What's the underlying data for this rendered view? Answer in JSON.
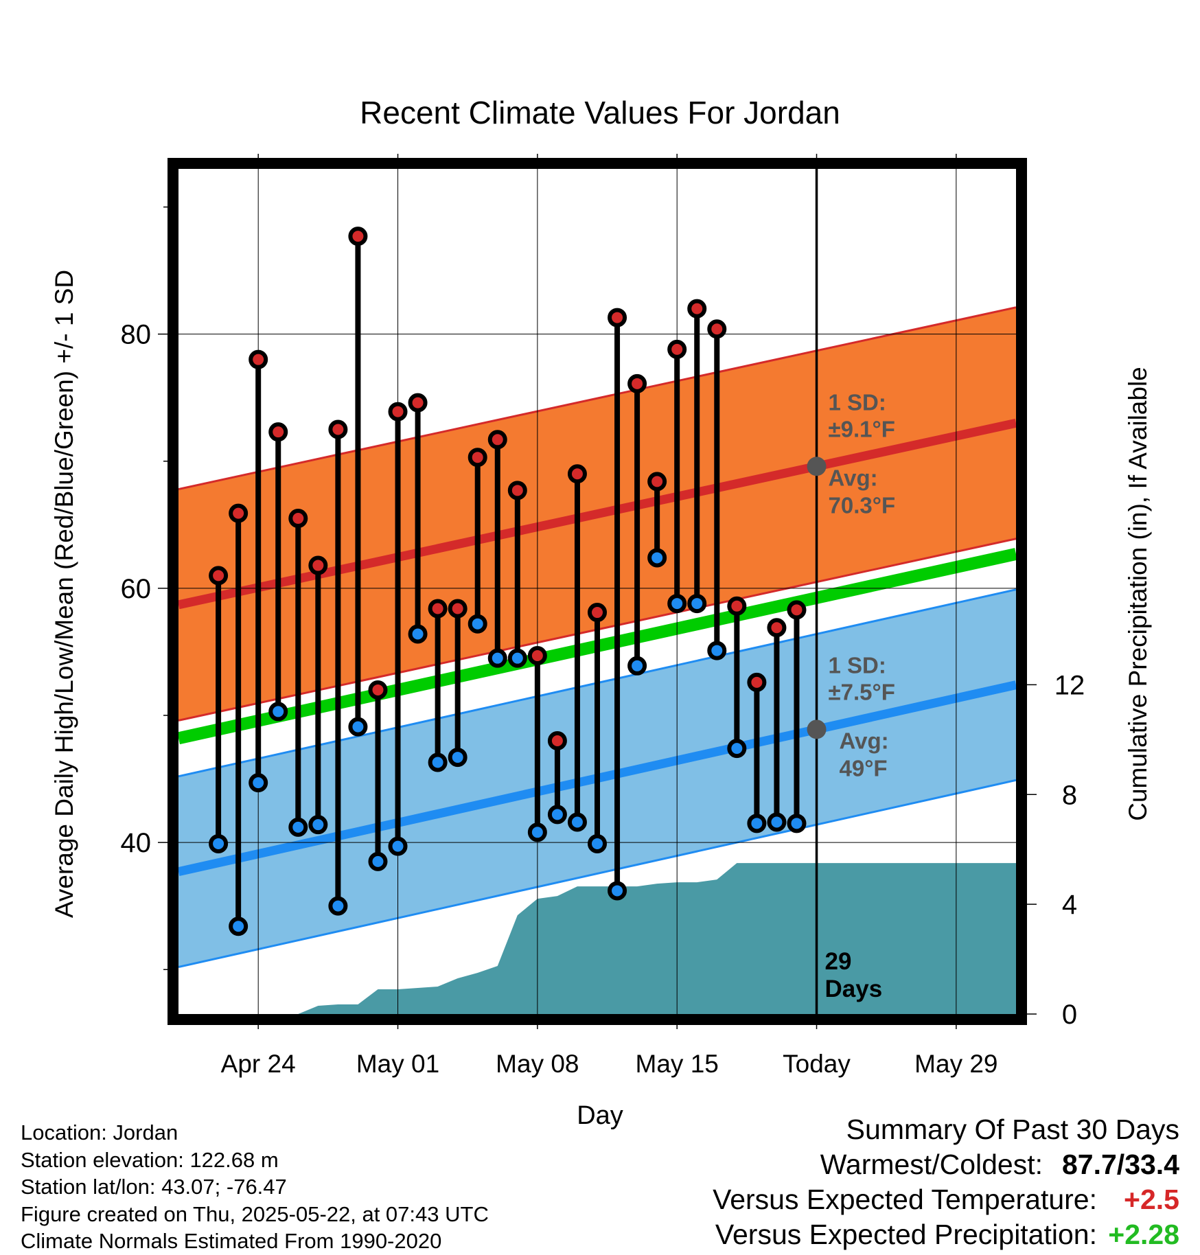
{
  "chart_data": {
    "type": "line",
    "title": "Recent Climate Values For Jordan",
    "xlabel": "Day",
    "ylabel": "Average Daily High/Low/Mean (Red/Blue/Green) +/- 1 SD",
    "y2label": "Cumulative Precipitation (in), If Available",
    "x_tick_labels": [
      "Apr 24",
      "May 01",
      "May 08",
      "May 15",
      "Today",
      "May 29"
    ],
    "x_tick_dates": [
      "2025-04-24",
      "2025-05-01",
      "2025-05-08",
      "2025-05-15",
      "2025-05-22",
      "2025-05-29"
    ],
    "xlim": [
      "2025-04-20",
      "2025-06-01"
    ],
    "ylim": [
      26.5,
      93
    ],
    "y_ticks": [
      40,
      60,
      80
    ],
    "y2lim": [
      0,
      30.8
    ],
    "y2_ticks": [
      0,
      4,
      8,
      12
    ],
    "grid": true,
    "today": "2025-05-22",
    "today_label": "29 Days",
    "observations": {
      "dates": [
        "2025-04-22",
        "2025-04-23",
        "2025-04-24",
        "2025-04-25",
        "2025-04-26",
        "2025-04-27",
        "2025-04-28",
        "2025-04-29",
        "2025-04-30",
        "2025-05-01",
        "2025-05-02",
        "2025-05-03",
        "2025-05-04",
        "2025-05-05",
        "2025-05-06",
        "2025-05-07",
        "2025-05-08",
        "2025-05-09",
        "2025-05-10",
        "2025-05-11",
        "2025-05-12",
        "2025-05-13",
        "2025-05-14",
        "2025-05-15",
        "2025-05-16",
        "2025-05-17",
        "2025-05-18",
        "2025-05-19",
        "2025-05-20",
        "2025-05-21"
      ],
      "high": [
        61.0,
        65.9,
        78.0,
        72.3,
        65.5,
        61.8,
        72.5,
        87.7,
        52.0,
        73.9,
        74.6,
        58.4,
        58.4,
        70.3,
        71.7,
        67.7,
        54.7,
        48.0,
        69.0,
        58.1,
        81.3,
        76.1,
        68.4,
        78.8,
        82.0,
        80.4,
        58.6,
        52.6,
        56.9,
        58.3
      ],
      "low": [
        39.9,
        33.4,
        44.7,
        50.3,
        41.2,
        41.4,
        35.0,
        49.1,
        38.5,
        39.7,
        56.4,
        46.3,
        46.7,
        57.2,
        54.5,
        54.5,
        40.8,
        42.2,
        41.6,
        39.9,
        36.2,
        53.9,
        62.4,
        58.8,
        58.8,
        55.1,
        47.4,
        41.5,
        41.6,
        41.5
      ]
    },
    "normals": {
      "dates": [
        "2025-04-20",
        "2025-06-01"
      ],
      "avg_high": [
        58.7,
        73.0
      ],
      "avg_low": [
        37.7,
        52.4
      ],
      "avg_mean": [
        48.2,
        62.7
      ],
      "high_sd": 9.1,
      "low_sd": 7.5
    },
    "precipitation": {
      "dates": [
        "2025-04-22",
        "2025-04-23",
        "2025-04-24",
        "2025-04-25",
        "2025-04-26",
        "2025-04-27",
        "2025-04-28",
        "2025-04-29",
        "2025-04-30",
        "2025-05-01",
        "2025-05-02",
        "2025-05-03",
        "2025-05-04",
        "2025-05-05",
        "2025-05-06",
        "2025-05-07",
        "2025-05-08",
        "2025-05-09",
        "2025-05-10",
        "2025-05-11",
        "2025-05-12",
        "2025-05-13",
        "2025-05-14",
        "2025-05-15",
        "2025-05-16",
        "2025-05-17",
        "2025-05-18",
        "2025-05-19",
        "2025-05-20",
        "2025-05-21",
        "2025-05-22",
        "2025-06-01"
      ],
      "cumulative": [
        0,
        0,
        0,
        0,
        0,
        0.3,
        0.35,
        0.35,
        0.9,
        0.9,
        0.95,
        1.0,
        1.3,
        1.5,
        1.75,
        3.6,
        4.2,
        4.3,
        4.65,
        4.65,
        4.65,
        4.65,
        4.75,
        4.8,
        4.8,
        4.9,
        5.5,
        5.5,
        5.5,
        5.5,
        5.5,
        5.5
      ]
    },
    "annotations": {
      "high_sd": "1 SD:",
      "high_sd_value": "±9.1°F",
      "high_avg": "Avg:",
      "high_avg_value": "70.3°F",
      "low_sd": "1 SD:",
      "low_sd_value": "±7.5°F",
      "low_avg": "Avg:",
      "low_avg_value": "49°F"
    },
    "colors": {
      "high_band": "#f47a30",
      "high_line": "#d42a2a",
      "low_band": "#80bfe6",
      "low_line": "#1f8cf2",
      "mean_line": "#00cc00",
      "precip": "#4a9aa5",
      "high_marker": "#d42a2a",
      "low_marker": "#1f8cf2"
    }
  },
  "footer": {
    "location": "Location: Jordan",
    "elevation": "Station elevation: 122.68 m",
    "latlon": "Station lat/lon: 43.07; -76.47",
    "created": "Figure created on Thu, 2025-05-22, at 07:43 UTC",
    "normals": "Climate Normals Estimated From 1990-2020"
  },
  "summary": {
    "title": "Summary Of Past 30 Days",
    "warmest_label": "Warmest/Coldest:",
    "warmest_value": "87.7/33.4",
    "temp_label": "Versus Expected Temperature:",
    "temp_value": "+2.5",
    "precip_label": "Versus Expected Precipitation:",
    "precip_value": "+2.28"
  }
}
